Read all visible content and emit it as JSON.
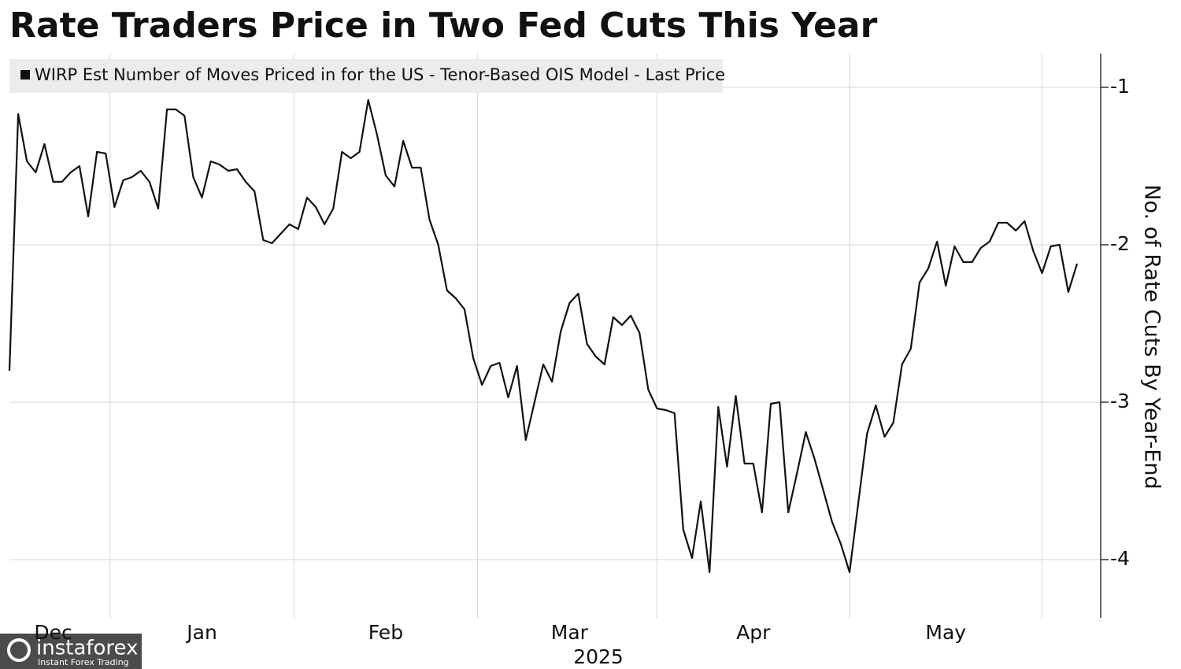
{
  "chart_data": {
    "type": "line",
    "title": "Rate Traders Price in Two Fed Cuts This Year",
    "y_axis_label": "No. of Rate Cuts By Year-End",
    "x_axis_year": "2025",
    "watermark": {
      "name": "instaforex",
      "tagline": "Instant Forex Trading"
    },
    "ylim": [
      -4.35,
      -0.8
    ],
    "yticks": [
      -1,
      -2,
      -3,
      -4
    ],
    "grid": true,
    "legend": "top-left",
    "categories": [
      null,
      null,
      null,
      null,
      null,
      "Dec",
      null,
      null,
      null,
      null,
      null,
      null,
      null,
      null,
      null,
      null,
      null,
      null,
      null,
      null,
      null,
      null,
      "Jan",
      null,
      null,
      null,
      null,
      null,
      null,
      null,
      null,
      null,
      null,
      null,
      null,
      null,
      null,
      null,
      null,
      null,
      null,
      null,
      null,
      "Feb",
      null,
      null,
      null,
      null,
      null,
      null,
      null,
      null,
      null,
      null,
      null,
      null,
      null,
      null,
      null,
      null,
      null,
      null,
      null,
      null,
      "Mar",
      null,
      null,
      null,
      null,
      null,
      null,
      null,
      null,
      null,
      null,
      null,
      null,
      null,
      null,
      null,
      null,
      null,
      null,
      null,
      null,
      "Apr",
      null,
      null,
      null,
      null,
      null,
      null,
      null,
      null,
      null,
      null,
      null,
      null,
      null,
      null,
      null,
      null,
      null,
      null,
      null,
      null,
      null,
      "May",
      null,
      null,
      null,
      null,
      null,
      null,
      null,
      null,
      null,
      null,
      null,
      null,
      null,
      null,
      null
    ],
    "series": [
      {
        "name": "WIRP Est Number of Moves Priced in for the US - Tenor-Based OIS Model - Last Price",
        "color": "#111111",
        "values": [
          -2.8,
          -1.17,
          -1.47,
          -1.54,
          -1.36,
          -1.6,
          -1.6,
          -1.54,
          -1.5,
          -1.82,
          -1.41,
          -1.42,
          -1.76,
          -1.59,
          -1.57,
          -1.53,
          -1.6,
          -1.77,
          -1.14,
          -1.14,
          -1.18,
          -1.57,
          -1.7,
          -1.47,
          -1.49,
          -1.53,
          -1.52,
          -1.6,
          -1.66,
          -1.97,
          -1.99,
          -1.93,
          -1.87,
          -1.9,
          -1.7,
          -1.76,
          -1.87,
          -1.77,
          -1.41,
          -1.45,
          -1.41,
          -1.08,
          -1.3,
          -1.56,
          -1.63,
          -1.34,
          -1.51,
          -1.51,
          -1.84,
          -2.0,
          -2.29,
          -2.34,
          -2.41,
          -2.72,
          -2.89,
          -2.77,
          -2.75,
          -2.97,
          -2.77,
          -3.24,
          -3.0,
          -2.76,
          -2.87,
          -2.55,
          -2.37,
          -2.31,
          -2.63,
          -2.71,
          -2.76,
          -2.46,
          -2.51,
          -2.45,
          -2.56,
          -2.92,
          -3.04,
          -3.05,
          -3.07,
          -3.81,
          -3.99,
          -3.63,
          -4.08,
          -3.03,
          -3.41,
          -2.96,
          -3.39,
          -3.39,
          -3.7,
          -3.01,
          -3.0,
          -3.7,
          -3.45,
          -3.19,
          -3.36,
          -3.56,
          -3.76,
          -3.9,
          -4.08,
          -3.64,
          -3.2,
          -3.02,
          -3.22,
          -3.13,
          -2.76,
          -2.66,
          -2.24,
          -2.15,
          -1.98,
          -2.26,
          -2.01,
          -2.11,
          -2.11,
          -2.02,
          -1.98,
          -1.86,
          -1.86,
          -1.91,
          -1.85,
          -2.04,
          -2.18,
          -2.01,
          -2.0,
          -2.3,
          -2.12
        ]
      }
    ]
  }
}
